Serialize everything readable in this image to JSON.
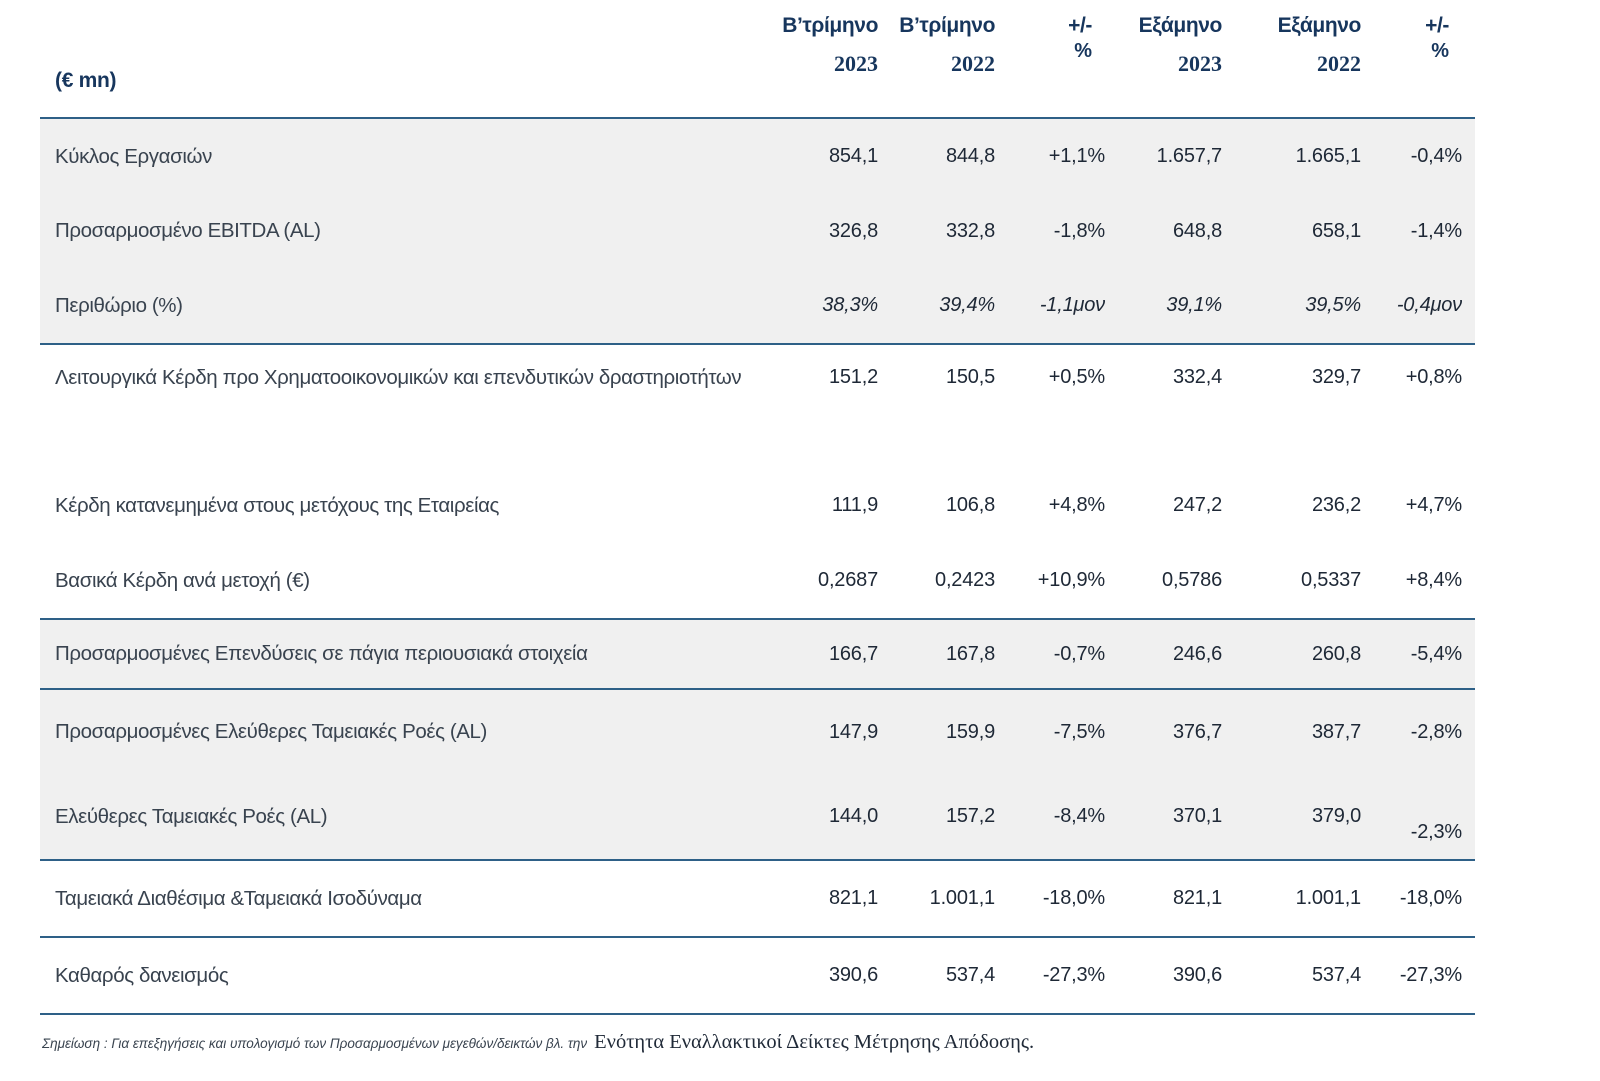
{
  "table": {
    "unit_label": "(€ mn)",
    "col_headers": [
      {
        "line1": "Β’τρίμηνο",
        "line2": "2023"
      },
      {
        "line1": "Β’τρίμηνο",
        "line2": "2022"
      },
      {
        "line1": "+/-",
        "line2": "%"
      },
      {
        "line1": "Εξάμηνο",
        "line2": "2023"
      },
      {
        "line1": "Εξάμηνο",
        "line2": "2022"
      },
      {
        "line1": "+/-",
        "line2": "%"
      }
    ],
    "rows": [
      {
        "label": "Κύκλος Εργασιών",
        "values": [
          "854,1",
          "844,8",
          "+1,1%",
          "1.657,7",
          "1.665,1",
          "-0,4%"
        ]
      },
      {
        "label": "Προσαρμοσμένο EBITDA (AL)",
        "values": [
          "326,8",
          "332,8",
          "-1,8%",
          "648,8",
          "658,1",
          "-1,4%"
        ]
      },
      {
        "label": "Περιθώριο (%)",
        "values": [
          "38,3%",
          "39,4%",
          "-1,1μον",
          "39,1%",
          "39,5%",
          "-0,4μον"
        ]
      },
      {
        "label": "Λειτουργικά Κέρδη προ Χρηματοοικονομικών και επενδυτικών δραστηριοτήτων",
        "values": [
          "151,2",
          "150,5",
          "+0,5%",
          "332,4",
          "329,7",
          "+0,8%"
        ]
      },
      {
        "label": "Κέρδη κατανεμημένα στους μετόχους της Εταιρείας",
        "values": [
          "111,9",
          "106,8",
          "+4,8%",
          "247,2",
          "236,2",
          "+4,7%"
        ]
      },
      {
        "label": "Βασικά Κέρδη ανά μετοχή (€)",
        "values": [
          "0,2687",
          "0,2423",
          "+10,9%",
          "0,5786",
          "0,5337",
          "+8,4%"
        ]
      },
      {
        "label": "Προσαρμοσμένες Επενδύσεις σε πάγια περιουσιακά στοιχεία",
        "values": [
          "166,7",
          "167,8",
          "-0,7%",
          "246,6",
          "260,8",
          "-5,4%"
        ]
      },
      {
        "label": "Προσαρμοσμένες Ελεύθερες Ταμειακές Ροές (AL)",
        "values": [
          "147,9",
          "159,9",
          "-7,5%",
          "376,7",
          "387,7",
          "-2,8%"
        ]
      },
      {
        "label": "Ελεύθερες Ταμειακές Ροές (AL)",
        "values": [
          "144,0",
          "157,2",
          "-8,4%",
          "370,1",
          "379,0",
          "-2,3%"
        ]
      },
      {
        "label": "Ταμειακά Διαθέσιμα &Ταμειακά Ισοδύναμα",
        "values": [
          "821,1",
          "1.001,1",
          "-18,0%",
          "821,1",
          "1.001,1",
          "-18,0%"
        ]
      },
      {
        "label": "Καθαρός δανεισμός",
        "values": [
          "390,6",
          "537,4",
          "-27,3%",
          "390,6",
          "537,4",
          "-27,3%"
        ]
      }
    ]
  },
  "footnote": {
    "note_italic": "Σημείωση : Για επεξηγήσεις και υπολογισμό των Προσαρμοσμένων μεγεθών/δεικτών βλ. την",
    "note_serif": "Ενότητα Εναλλακτικοί Δείκτες Μέτρησης Απόδοσης."
  },
  "colors": {
    "rule_blue": "#2e6087",
    "row_shade": "#f0f0f0",
    "header_text": "#17365d",
    "label_text": "#39434f",
    "value_text": "#1e2836"
  }
}
